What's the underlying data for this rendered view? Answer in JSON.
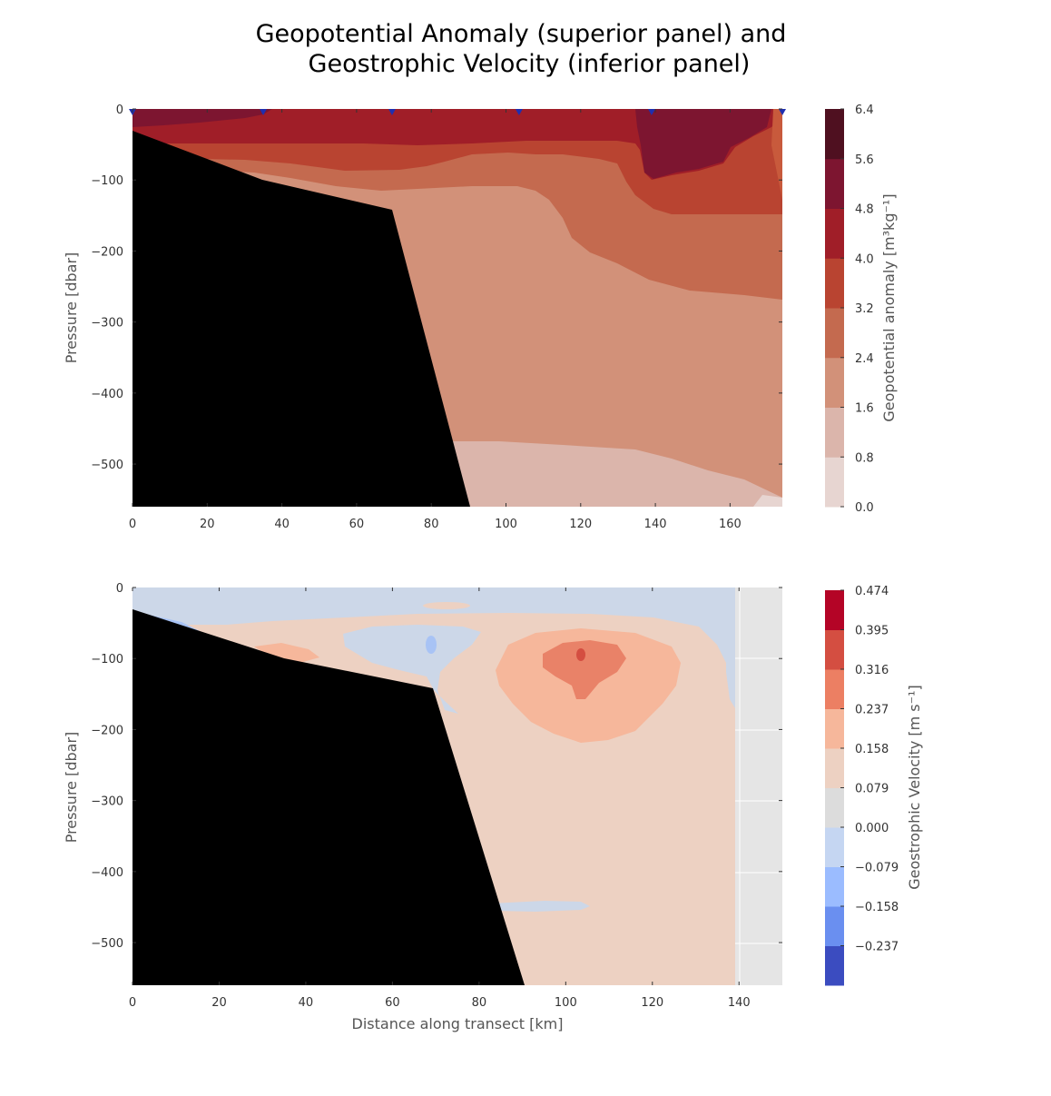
{
  "figure": {
    "title_line1": "Geopotential Anomaly (superior panel) and",
    "title_line2": "Geostrophic Velocity (inferior panel)"
  },
  "chart_data": [
    {
      "type": "heatmap",
      "panel": "superior",
      "xlabel": "",
      "ylabel": "Pressure [dbar]",
      "xlim": [
        0,
        174
      ],
      "ylim": [
        -560,
        0
      ],
      "xticks": [
        "0",
        "20",
        "40",
        "60",
        "80",
        "100",
        "120",
        "140",
        "160"
      ],
      "yticks": [
        "0",
        "−100",
        "−200",
        "−300",
        "−400",
        "−500"
      ],
      "station_markers_x_km": [
        0,
        35,
        69.5,
        103.5,
        139,
        174
      ],
      "colorbar": {
        "label": "Geopotential anomaly [m³kg⁻¹]",
        "tick_labels": [
          "6.4",
          "5.6",
          "4.8",
          "4.0",
          "3.2",
          "2.4",
          "1.6",
          "0.8",
          "0.0"
        ],
        "levels": [
          0.0,
          0.8,
          1.6,
          2.4,
          3.2,
          4.0,
          4.8,
          5.6,
          6.4
        ],
        "colors": [
          "#e7d5d1",
          "#dbb5ab",
          "#d29179",
          "#c46a4f",
          "#b94431",
          "#a01e28",
          "#7d1530",
          "#4f1020"
        ]
      },
      "bathymetry_km_dbar": [
        [
          0,
          -30
        ],
        [
          35,
          -100
        ],
        [
          69.5,
          -142
        ],
        [
          90.5,
          -560
        ]
      ]
    },
    {
      "type": "heatmap",
      "panel": "inferior",
      "xlabel": "Distance along transect [km]",
      "ylabel": "Pressure [dbar]",
      "xlim": [
        0,
        150
      ],
      "ylim": [
        -560,
        0
      ],
      "xticks": [
        "0",
        "20",
        "40",
        "60",
        "80",
        "100",
        "120",
        "140"
      ],
      "yticks": [
        "0",
        "−100",
        "−200",
        "−300",
        "−400",
        "−500"
      ],
      "data_extent_x_km": [
        0,
        139
      ],
      "colorbar": {
        "label": "Geostrophic Velocity [m s⁻¹]",
        "tick_labels": [
          "0.474",
          "0.395",
          "0.316",
          "0.237",
          "0.158",
          "0.079",
          "0.000",
          "−0.079",
          "−0.158",
          "−0.237"
        ],
        "levels": [
          -0.316,
          -0.237,
          -0.158,
          -0.079,
          0.0,
          0.079,
          0.158,
          0.237,
          0.316,
          0.395,
          0.474
        ],
        "colors": [
          "#3b4cc0",
          "#6a8ff0",
          "#9bbcff",
          "#c5d6f2",
          "#dcdcdc",
          "#edd1c2",
          "#f6b79b",
          "#ec7f63",
          "#d44e41",
          "#b40426"
        ]
      },
      "velocity_core": {
        "x_km": 103.5,
        "p_dbar": -95,
        "value_ms": 0.4
      },
      "bathymetry_km_dbar": [
        [
          0,
          -30
        ],
        [
          35,
          -100
        ],
        [
          69.5,
          -142
        ],
        [
          90.5,
          -560
        ]
      ]
    }
  ]
}
